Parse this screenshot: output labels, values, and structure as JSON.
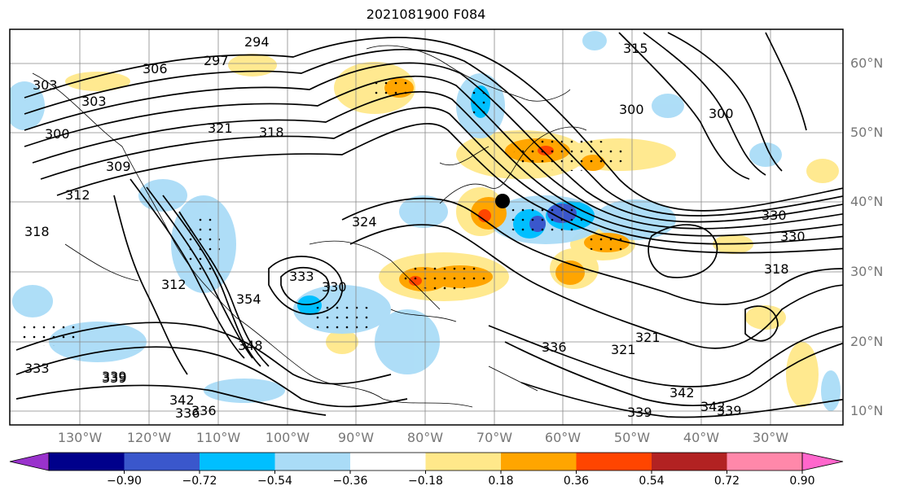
{
  "title": "2021081900 F084",
  "lat_labels": [
    "60°N",
    "50°N",
    "40°N",
    "30°N",
    "20°N",
    "10°N"
  ],
  "lon_labels": [
    "130°W",
    "120°W",
    "110°W",
    "100°W",
    "90°W",
    "80°W",
    "70°W",
    "60°W",
    "50°W",
    "40°W",
    "30°W"
  ],
  "colorbar": {
    "ticks": [
      "−0.90",
      "−0.72",
      "−0.54",
      "−0.36",
      "−0.18",
      "0.18",
      "0.36",
      "0.54",
      "0.72",
      "0.90"
    ],
    "colors": [
      "#9932cc",
      "#00008b",
      "#3a57cc",
      "#00bfff",
      "#aadcf7",
      "#ffffff",
      "#ffe88a",
      "#ffa500",
      "#ff4500",
      "#b22222",
      "#ff88aa",
      "#ff66cc"
    ]
  },
  "contour_labels": [
    "294",
    "297",
    "306",
    "303",
    "300",
    "321",
    "318",
    "312",
    "318",
    "309",
    "303",
    "300",
    "300",
    "315",
    "330",
    "330",
    "318",
    "312",
    "324",
    "354",
    "348",
    "333",
    "330",
    "321",
    "321",
    "336",
    "339",
    "342",
    "339",
    "336",
    "333",
    "339",
    "342",
    "339",
    "336",
    "342"
  ],
  "shading_colors": {
    "light_blue": "#aadcf7",
    "blue": "#00bfff",
    "dark_blue": "#3a57cc",
    "yellow": "#ffe88a",
    "orange": "#ffa500",
    "red_orange": "#ff4500",
    "land": "#ffffff",
    "grid": "#888888"
  },
  "marker": "black-dot"
}
